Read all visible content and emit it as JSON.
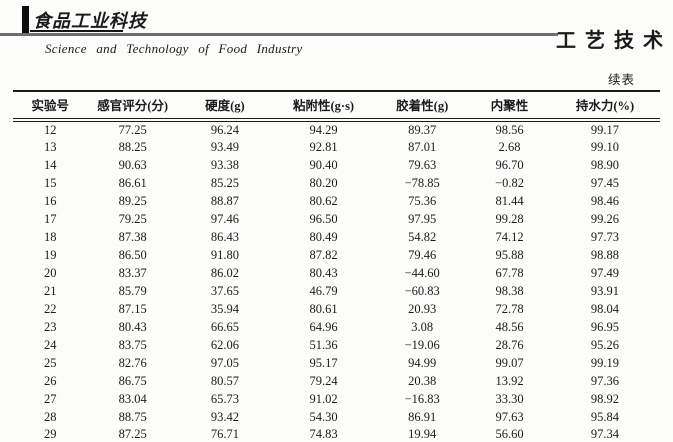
{
  "masthead": {
    "logo_cn": "食品工业科技",
    "logo_en": "Science and Technology of Food Industry",
    "section_label": "工艺技术",
    "continued_label": "续表"
  },
  "table": {
    "columns": [
      "实验号",
      "感官评分(分)",
      "硬度(g)",
      "粘附性(g·s)",
      "胶着性(g)",
      "内聚性",
      "持水力(%)"
    ],
    "rows": [
      [
        "12",
        "77.25",
        "96.24",
        "94.29",
        "89.37",
        "98.56",
        "99.17"
      ],
      [
        "13",
        "88.25",
        "93.49",
        "92.81",
        "87.01",
        "2.68",
        "99.10"
      ],
      [
        "14",
        "90.63",
        "93.38",
        "90.40",
        "79.63",
        "96.70",
        "98.90"
      ],
      [
        "15",
        "86.61",
        "85.25",
        "80.20",
        "−78.85",
        "−0.82",
        "97.45"
      ],
      [
        "16",
        "89.25",
        "88.87",
        "80.62",
        "75.36",
        "81.44",
        "98.46"
      ],
      [
        "17",
        "79.25",
        "97.46",
        "96.50",
        "97.95",
        "99.28",
        "99.26"
      ],
      [
        "18",
        "87.38",
        "86.43",
        "80.49",
        "54.82",
        "74.12",
        "97.73"
      ],
      [
        "19",
        "86.50",
        "91.80",
        "87.82",
        "79.46",
        "95.88",
        "98.88"
      ],
      [
        "20",
        "83.37",
        "86.02",
        "80.43",
        "−44.60",
        "67.78",
        "97.49"
      ],
      [
        "21",
        "85.79",
        "37.65",
        "46.79",
        "−60.83",
        "98.38",
        "93.91"
      ],
      [
        "22",
        "87.15",
        "35.94",
        "80.61",
        "20.93",
        "72.78",
        "98.04"
      ],
      [
        "23",
        "80.43",
        "66.65",
        "64.96",
        "3.08",
        "48.56",
        "96.95"
      ],
      [
        "24",
        "83.75",
        "62.06",
        "51.36",
        "−19.06",
        "28.76",
        "95.26"
      ],
      [
        "25",
        "82.76",
        "97.05",
        "95.17",
        "94.99",
        "99.07",
        "99.19"
      ],
      [
        "26",
        "86.75",
        "80.57",
        "79.24",
        "20.38",
        "13.92",
        "97.36"
      ],
      [
        "27",
        "83.04",
        "65.73",
        "91.02",
        "−16.83",
        "33.30",
        "98.92"
      ],
      [
        "28",
        "88.75",
        "93.42",
        "54.30",
        "86.91",
        "97.63",
        "95.84"
      ],
      [
        "29",
        "87.25",
        "76.71",
        "74.83",
        "19.94",
        "56.60",
        "97.34"
      ]
    ]
  }
}
